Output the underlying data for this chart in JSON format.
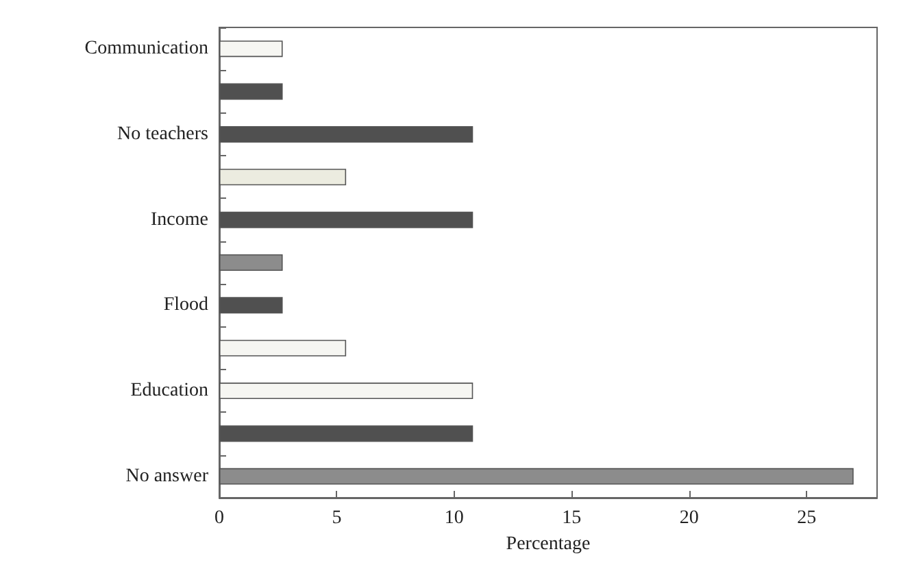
{
  "chart_data": {
    "type": "bar",
    "orientation": "horizontal",
    "xlabel": "Percentage",
    "categories": [
      "Communication",
      null,
      "No teachers",
      null,
      "Income",
      null,
      "Flood",
      null,
      "Education",
      null,
      "No answer"
    ],
    "values": [
      2.7,
      2.7,
      10.8,
      5.4,
      10.8,
      2.7,
      2.7,
      5.4,
      10.8,
      10.8,
      27
    ],
    "colors": [
      "#f6f6f2",
      "#505050",
      "#505050",
      "#ecece0",
      "#505050",
      "#8c8c8c",
      "#505050",
      "#f6f6f2",
      "#f6f6f2",
      "#505050",
      "#8c8c8c"
    ],
    "xlim": [
      0,
      28
    ],
    "xticks": [
      0,
      5,
      10,
      15,
      20,
      25
    ],
    "grid": false
  }
}
